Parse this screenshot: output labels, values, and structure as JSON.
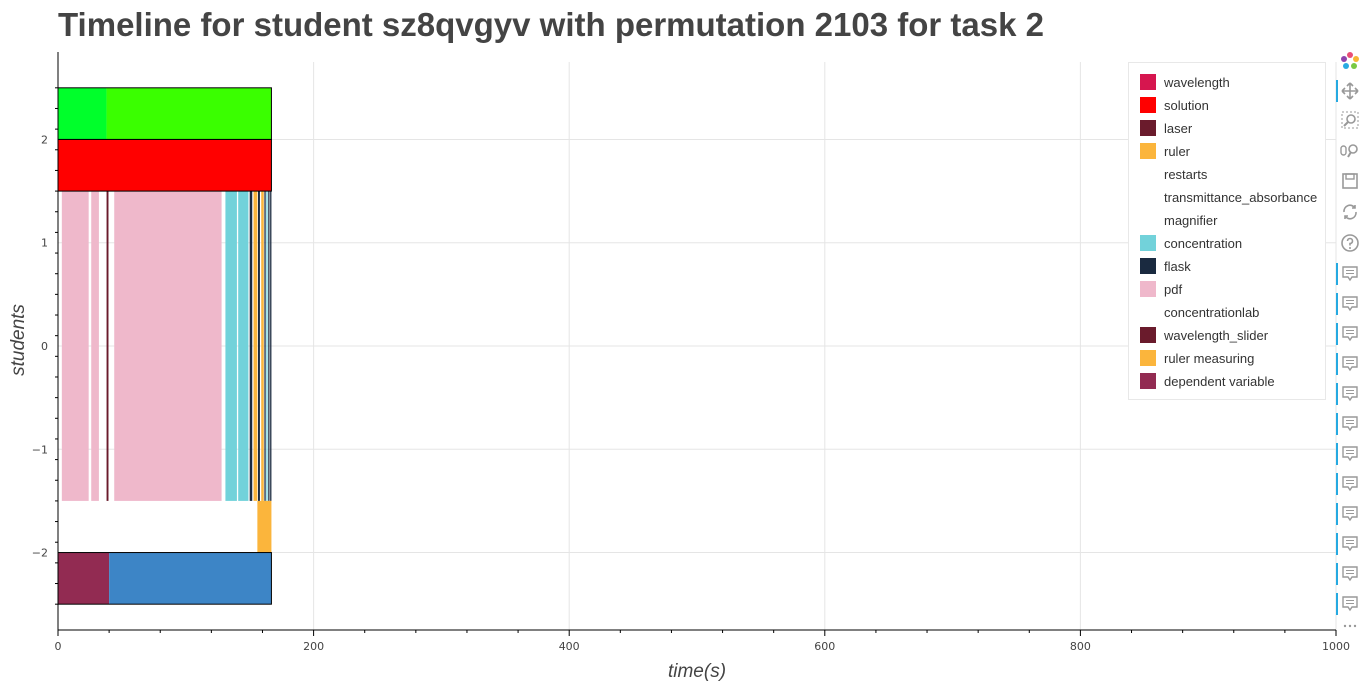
{
  "chart_data": {
    "type": "timeline",
    "title": "Timeline for student sz8qvgyv with permutation 2103 for task 2",
    "xlabel": "time(s)",
    "ylabel": "students",
    "xlim": [
      0,
      1000
    ],
    "ylim": [
      -2.75,
      2.75
    ],
    "x_ticks": [
      0,
      200,
      400,
      600,
      800,
      1000
    ],
    "y_ticks": [
      -2,
      -1,
      0,
      1,
      2
    ],
    "y_tick_labels": [
      "−2",
      "−1",
      "0",
      "1",
      "2"
    ],
    "grid": true,
    "legend_position": "top-right",
    "rows": [
      {
        "y_range": [
          2,
          2.5
        ],
        "segments": [
          {
            "start": 0,
            "end": 38,
            "color": "#00ff2b",
            "label": "concentrationlab"
          },
          {
            "start": 38,
            "end": 167,
            "color": "#3aff00",
            "label": "concentrationlab"
          }
        ]
      },
      {
        "y_range": [
          1.5,
          2
        ],
        "segments": [
          {
            "start": 0,
            "end": 167,
            "color": "#ff0000",
            "label": "solution"
          }
        ]
      },
      {
        "y_range": [
          -1.5,
          1.5
        ],
        "segments": [
          {
            "start": 3,
            "end": 24,
            "color": "#efb8cb",
            "label": "pdf"
          },
          {
            "start": 26,
            "end": 32,
            "color": "#efb8cb",
            "label": "pdf"
          },
          {
            "start": 38,
            "end": 39.5,
            "color": "#6a1b2c",
            "label": "wavelength_slider"
          },
          {
            "start": 44,
            "end": 128,
            "color": "#efb8cb",
            "label": "pdf"
          },
          {
            "start": 131,
            "end": 140,
            "color": "#72d2da",
            "label": "concentration"
          },
          {
            "start": 141,
            "end": 149,
            "color": "#72d2da",
            "label": "concentration"
          },
          {
            "start": 150,
            "end": 152,
            "color": "#1a2a40",
            "label": "flask"
          },
          {
            "start": 153,
            "end": 156,
            "color": "#fbb53c",
            "label": "ruler measuring"
          },
          {
            "start": 156.5,
            "end": 158,
            "color": "#1a2a40",
            "label": "flask"
          },
          {
            "start": 159,
            "end": 161,
            "color": "#fbb53c",
            "label": "ruler measuring"
          },
          {
            "start": 161.5,
            "end": 162.5,
            "color": "#1a2a40",
            "label": "flask"
          },
          {
            "start": 163,
            "end": 164,
            "color": "#72d2da",
            "label": "concentration"
          },
          {
            "start": 164.5,
            "end": 165.5,
            "color": "#1a2a40",
            "label": "flask"
          },
          {
            "start": 166,
            "end": 167,
            "color": "#1a2a40",
            "label": "flask"
          }
        ]
      },
      {
        "y_range": [
          -2,
          -1.5
        ],
        "segments": [
          {
            "start": 156,
            "end": 167,
            "color": "#fbb53c",
            "label": "ruler"
          }
        ]
      },
      {
        "y_range": [
          -2.5,
          -2
        ],
        "segments": [
          {
            "start": 0,
            "end": 40,
            "color": "#922b52",
            "label": "dependent variable"
          },
          {
            "start": 40,
            "end": 167,
            "color": "#3d85c6",
            "label": "dependent variable"
          }
        ]
      }
    ],
    "row_outlines": [
      [
        2,
        2.5
      ],
      [
        1.5,
        2
      ],
      [
        -2.5,
        -2
      ]
    ],
    "legend": [
      {
        "label": "wavelength",
        "color": "#d6164f"
      },
      {
        "label": "solution",
        "color": "#ff0000"
      },
      {
        "label": "laser",
        "color": "#6a1b2c"
      },
      {
        "label": "ruler",
        "color": "#fbb53c"
      },
      {
        "label": "restarts",
        "color": ""
      },
      {
        "label": "transmittance_absorbance",
        "color": ""
      },
      {
        "label": "magnifier",
        "color": ""
      },
      {
        "label": "concentration",
        "color": "#72d2da"
      },
      {
        "label": "flask",
        "color": "#1a2a40"
      },
      {
        "label": "pdf",
        "color": "#efb8cb"
      },
      {
        "label": "concentrationlab",
        "color": ""
      },
      {
        "label": "wavelength_slider",
        "color": "#6a1b2c"
      },
      {
        "label": "ruler measuring",
        "color": "#fbb53c"
      },
      {
        "label": "dependent variable",
        "color": "#922b52"
      }
    ]
  },
  "toolbar": {
    "tools": [
      {
        "icon": "bokeh-logo-icon",
        "active": false
      },
      {
        "icon": "pan-icon",
        "active": true
      },
      {
        "icon": "box-zoom-icon",
        "active": false
      },
      {
        "icon": "wheel-zoom-icon",
        "active": false
      },
      {
        "icon": "save-icon",
        "active": false
      },
      {
        "icon": "reset-icon",
        "active": false
      },
      {
        "icon": "help-icon",
        "active": false
      },
      {
        "icon": "hover-icon",
        "active": true
      },
      {
        "icon": "hover-icon",
        "active": true
      },
      {
        "icon": "hover-icon",
        "active": true
      },
      {
        "icon": "hover-icon",
        "active": true
      },
      {
        "icon": "hover-icon",
        "active": true
      },
      {
        "icon": "hover-icon",
        "active": true
      },
      {
        "icon": "hover-icon",
        "active": true
      },
      {
        "icon": "hover-icon",
        "active": true
      },
      {
        "icon": "hover-icon",
        "active": true
      },
      {
        "icon": "hover-icon",
        "active": true
      },
      {
        "icon": "hover-icon",
        "active": true
      },
      {
        "icon": "hover-icon",
        "active": true
      },
      {
        "icon": "more-icon",
        "active": false
      }
    ],
    "accent_color": "#26aae1"
  }
}
